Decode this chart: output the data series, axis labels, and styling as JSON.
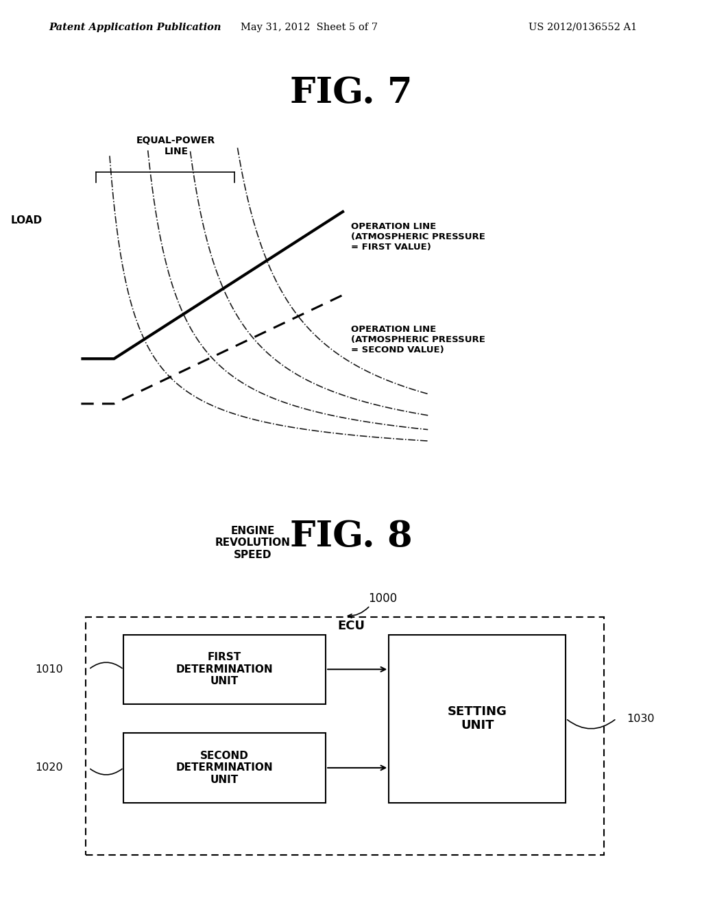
{
  "bg_color": "#ffffff",
  "header_left": "Patent Application Publication",
  "header_center": "May 31, 2012  Sheet 5 of 7",
  "header_right": "US 2012/0136552 A1",
  "fig7_title": "FIG. 7",
  "fig8_title": "FIG. 8",
  "fig7_xlabel": "ENGINE\nREVOLUTION\nSPEED",
  "fig7_ylabel": "LOAD",
  "equal_power_label": "EQUAL-POWER\nLINE",
  "op_line1_label": "OPERATION LINE\n(ATMOSPHERIC PRESSURE\n= FIRST VALUE)",
  "op_line2_label": "OPERATION LINE\n(ATMOSPHERIC PRESSURE\n= SECOND VALUE)",
  "ecu_label": "ECU",
  "ecu_ref": "1000",
  "box1_label": "FIRST\nDETERMINATION\nUNIT",
  "box1_ref": "1010",
  "box2_label": "SECOND\nDETERMINATION\nUNIT",
  "box2_ref": "1020",
  "box3_label": "SETTING\nUNIT",
  "box3_ref": "1030"
}
